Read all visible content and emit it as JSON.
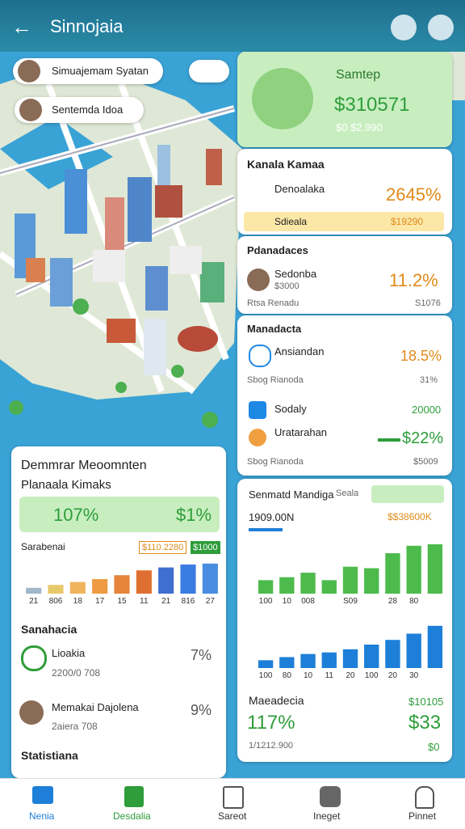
{
  "header": {
    "title": "Sinnojaia"
  },
  "map_chips": [
    "Simuajemam Syatan",
    "Sentemda Idoa"
  ],
  "cards": {
    "summary": {
      "title": "Samtep",
      "amount": "$310571",
      "sub": "$0 $2.990"
    },
    "kanala": {
      "title": "Kanala Kamaa",
      "row_label": "Denoalaka",
      "row_value": "2645%",
      "highlight_label": "Sdieala",
      "highlight_value": "$19290"
    },
    "pdanadaces": {
      "title": "Pdanadaces",
      "name": "Sedonba",
      "sub": "$3000",
      "value": "11.2%",
      "footer_label": "Rtsa Renadu",
      "footer_value": "S1076"
    },
    "manadacta": {
      "title": "Manadacta",
      "rows": [
        {
          "name": "Ansiandan",
          "value": "18.5%",
          "sub": "Sbog Rianoda",
          "sub_value": "31%"
        },
        {
          "name": "Sodaly",
          "value": "20000"
        },
        {
          "name": "Uratarahan",
          "value": "$22%",
          "sub": "Sbog Rianoda",
          "sub_value": "$5009"
        }
      ]
    }
  },
  "left_panel": {
    "title": "Demmrar Meoomnten",
    "subtitle": "Planaala Kimaks",
    "stat_left": "107%",
    "stat_right": "$1%",
    "chart": {
      "type": "bar",
      "label": "Sarabenai",
      "badges": [
        "$110.2280",
        "$1000"
      ],
      "categories": [
        "21",
        "806",
        "18",
        "17",
        "15",
        "11",
        "21",
        "816",
        "27"
      ],
      "values": [
        6,
        9,
        12,
        15,
        19,
        24,
        27,
        30,
        31
      ],
      "colors": [
        "#9fb7c9",
        "#e7c96a",
        "#f0b45c",
        "#ee9b44",
        "#e6843a",
        "#df6f30",
        "#3f6fd0",
        "#3a7de0",
        "#4a8ce0"
      ],
      "ylim": [
        0,
        40
      ]
    },
    "list_title": "Sanahacia",
    "items": [
      {
        "name": "Lioakia",
        "sub": "2200/0 708",
        "value": "7%"
      },
      {
        "name": "Memakai Dajolena",
        "sub": "2aiera 708",
        "value": "9%"
      }
    ],
    "footer_title": "Statistiana"
  },
  "right_panel": {
    "title": "Senmatd Mandiga",
    "tag": "Seala",
    "left_value": "1909.00N",
    "right_value": "$$38600K",
    "charts": [
      {
        "type": "bar",
        "color": "#4cbb4c",
        "categories": [
          "100",
          "10",
          "008",
          null,
          "S09",
          null,
          "28",
          "80",
          null
        ],
        "values": [
          9,
          11,
          14,
          9,
          18,
          17,
          27,
          32,
          33
        ],
        "ylim": [
          0,
          40
        ]
      },
      {
        "type": "bar",
        "color": "#1e7fd8",
        "categories": [
          "100",
          "80",
          "10",
          "11",
          "20",
          "100",
          "20",
          "30",
          null
        ],
        "values": [
          5,
          7,
          9,
          10,
          12,
          15,
          18,
          22,
          27
        ],
        "ylim": [
          0,
          30
        ]
      }
    ],
    "footer": {
      "title": "Maeadecia",
      "top_right": "$10105",
      "big_left": "117%",
      "big_right": "$33",
      "sub_left": "1/1212.900",
      "sub_right": "$0"
    }
  },
  "nav": [
    "Nenia",
    "Desdalia",
    "Sareot",
    "Ineget",
    "Pinnet"
  ]
}
